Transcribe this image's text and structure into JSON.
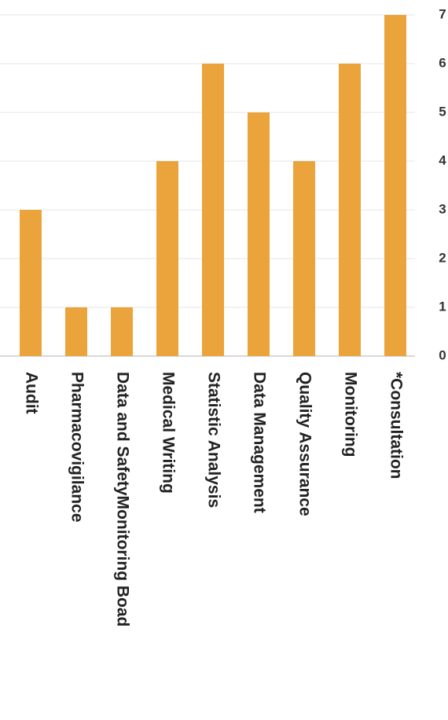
{
  "chart_data": {
    "type": "bar",
    "categories": [
      "Audit",
      "Pharmacovigilance",
      "Data and SafetyMonitoring Boad",
      "Medical Writing",
      "Statistic Analysis",
      "Data Management",
      "Quality Assurance",
      "Monitoring",
      "*Consultation"
    ],
    "values": [
      3,
      1,
      1,
      4,
      6,
      5,
      4,
      6,
      7
    ],
    "ylim": [
      0,
      7
    ],
    "yticks": [
      0,
      1,
      2,
      3,
      4,
      5,
      6,
      7
    ],
    "y_axis_position": "right",
    "grid": true,
    "bar_color": "#eba43b",
    "title": "",
    "xlabel": "",
    "ylabel": ""
  }
}
